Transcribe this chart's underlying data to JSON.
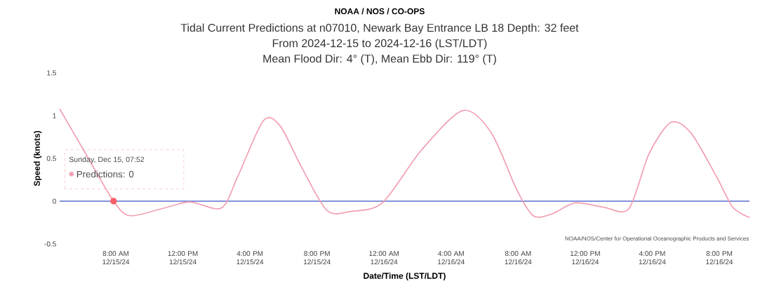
{
  "chart_data": {
    "type": "line",
    "title": "NOAA / NOS / CO-OPS",
    "subtitle": "Tidal Current Predictions at n07010, Newark Bay Entrance LB 18  Depth: 32 feet",
    "xlabel": "Date/Time (LST/LDT)",
    "ylabel": "Speed (knots)",
    "annotations": [
      "From 2024-12-15 to 2024-12-16 (LST/LDT)",
      "Mean Flood Dir: 4° (T), Mean Ebb Dir: 119° (T)",
      "NOAA/NOS/Center for Operational Oceanographic Products and Services",
      "Sunday, Dec 15, 07:52",
      {
        "text": "Predictions: 0",
        "x": "2024-12-15T07:52",
        "y": 0
      }
    ],
    "x": [
      "2024-12-15T04:39",
      "2024-12-15T06:06",
      "2024-12-15T07:52",
      "2024-12-15T08:50",
      "2024-12-15T10:42",
      "2024-12-15T12:24",
      "2024-12-15T14:18",
      "2024-12-15T15:18",
      "2024-12-15T16:48",
      "2024-12-15T17:48",
      "2024-12-15T19:06",
      "2024-12-15T20:36",
      "2024-12-15T22:00",
      "2024-12-15T23:54",
      "2024-12-16T02:12",
      "2024-12-16T04:42",
      "2024-12-16T06:24",
      "2024-12-16T07:54",
      "2024-12-16T08:54",
      "2024-12-16T10:00",
      "2024-12-16T11:24",
      "2024-12-16T13:06",
      "2024-12-16T14:36",
      "2024-12-16T15:48",
      "2024-12-16T17:06",
      "2024-12-16T18:18",
      "2024-12-16T19:48",
      "2024-12-16T20:48",
      "2024-12-16T21:48"
    ],
    "series": [
      {
        "color": "#f2a0b2",
        "values": [
          1.08,
          0.59,
          0,
          -0.17,
          -0.09,
          -0.01,
          -0.08,
          0.3,
          0.94,
          0.88,
          0.39,
          -0.11,
          -0.12,
          -0.02,
          0.59,
          1.06,
          0.8,
          0.14,
          -0.17,
          -0.15,
          -0.02,
          -0.07,
          -0.09,
          0.55,
          0.92,
          0.8,
          0.3,
          -0.07,
          -0.19
        ]
      }
    ],
    "xlim": [
      "2024-12-15T04:39",
      "2024-12-16T21:48"
    ],
    "xticks": [
      {
        "value": "2024-12-15T08:00",
        "label": "8:00 AM 12/15/24"
      },
      {
        "value": "2024-12-15T12:00",
        "label": "12:00 PM 12/15/24"
      },
      {
        "value": "2024-12-15T16:00",
        "label": "4:00 PM 12/15/24"
      },
      {
        "value": "2024-12-15T20:00",
        "label": "8:00 PM 12/15/24"
      },
      {
        "value": "2024-12-16T00:00",
        "label": "12:00 AM 12/16/24"
      },
      {
        "value": "2024-12-16T04:00",
        "label": "4:00 AM 12/16/24"
      },
      {
        "value": "2024-12-16T08:00",
        "label": "8:00 AM 12/16/24"
      },
      {
        "value": "2024-12-16T12:00",
        "label": "12:00 PM 12/16/24"
      },
      {
        "value": "2024-12-16T16:00",
        "label": "4:00 PM 12/16/24"
      },
      {
        "value": "2024-12-16T20:00",
        "label": "8:00 PM 12/16/24"
      }
    ],
    "ylim": [
      -0.5,
      1.5
    ],
    "yticks": [
      -0.5,
      0,
      0.5,
      1,
      1.5
    ],
    "ref_lines": [
      {
        "axis": "y",
        "value": 0,
        "color": "#5b6fd0"
      }
    ],
    "grid": false,
    "marker": "none",
    "line_style": "solid"
  }
}
